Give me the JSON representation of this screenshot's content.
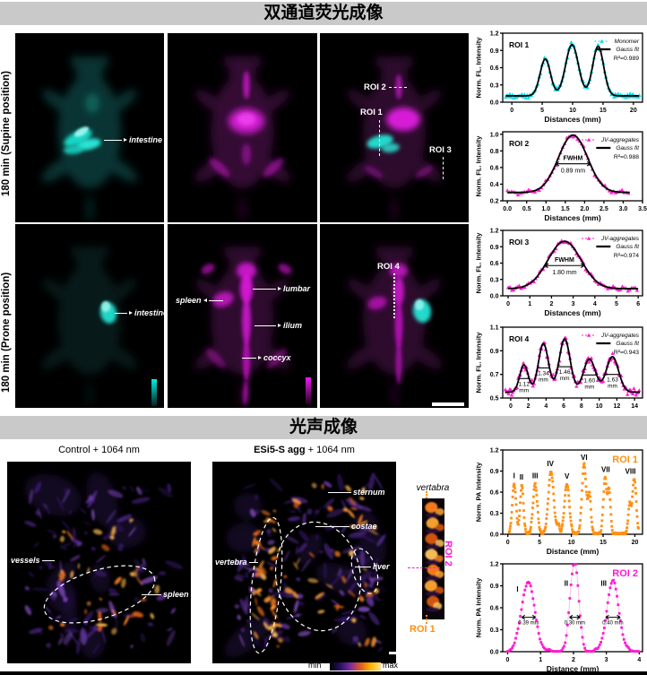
{
  "sections": {
    "fluorescence": {
      "title": "双通道荧光成像"
    },
    "photoacoustic": {
      "title": "光声成像"
    }
  },
  "row_labels": {
    "supine": "180 min (Supine position)",
    "prone": "180 min (Prone position)"
  },
  "anatomy_labels": {
    "intestine": "intestine",
    "spleen": "spleen",
    "lumbar": "lumbar",
    "ilium": "ilium",
    "coccyx": "coccyx",
    "vessels": "vessels",
    "spleen_pa": "spleen",
    "sternum": "sternum",
    "costae": "costae",
    "vertebra": "vertebra",
    "liver": "liver",
    "vertabra_strip": "vertabra"
  },
  "roi_labels": {
    "roi1": "ROI 1",
    "roi2": "ROI 2",
    "roi3": "ROI 3",
    "roi4": "ROI 4",
    "pa_roi1": "ROI 1",
    "pa_roi2": "ROI 2"
  },
  "pa_titles": {
    "control": "Control + 1064 nm",
    "esi5_bold": "ESi5-S agg",
    "esi5_rest": " + 1064 nm"
  },
  "colorbar": {
    "min": "min",
    "max": "max"
  },
  "colors": {
    "cyan": "#00dde8",
    "magenta": "#ff22cc",
    "orange": "#ff9012",
    "roi2_magenta": "#ff1ad4",
    "header_bg": "#c9c9c9"
  },
  "chart_data": [
    {
      "name": "FL line profile ROI 1",
      "type": "scatter+fit",
      "roi": "ROI 1",
      "roi_pos": "tl",
      "roi_color": "#000000",
      "xlabel": "Distances (mm)",
      "ylabel": "Norm. FL. Intensity",
      "xlim": [
        -1.5,
        21.5
      ],
      "ylim": [
        0,
        1.2
      ],
      "xticks": [
        0,
        5,
        10,
        15,
        20
      ],
      "xtick_labels": [
        "0",
        "5",
        "10",
        "15",
        "20"
      ],
      "yticks": [
        0,
        0.3,
        0.6,
        0.9,
        1.2
      ],
      "ytick_labels": [
        "0.0",
        "0.3",
        "0.6",
        "0.9",
        "1.2"
      ],
      "legend": [
        {
          "label": "Monomer",
          "color": "#00dde8",
          "style": "marker"
        },
        {
          "label": "Gauss fit",
          "color": "#000000",
          "style": "line"
        }
      ],
      "r2": "R²=0.989",
      "marker": "triangle",
      "marker_color": "#00dde8",
      "baseline": 0.11,
      "peaks": [
        {
          "c": 5.5,
          "h": 0.64,
          "s": 0.85
        },
        {
          "c": 9.9,
          "h": 0.89,
          "s": 1.05
        },
        {
          "c": 14.2,
          "h": 0.86,
          "s": 0.9
        }
      ],
      "data_range": [
        -1,
        21
      ],
      "dx": 0.22,
      "noise": 0.025,
      "annotations": []
    },
    {
      "name": "FL line profile ROI 2",
      "type": "scatter+fit",
      "roi": "ROI 2",
      "roi_pos": "tl",
      "roi_color": "#000000",
      "xlabel": "Distances (mm)",
      "ylabel": "Norm. FL. Intensity",
      "xlim": [
        -0.12,
        3.5
      ],
      "ylim": [
        0.2,
        1.03
      ],
      "xticks": [
        0,
        0.5,
        1,
        1.5,
        2,
        2.5,
        3,
        3.5
      ],
      "xtick_labels": [
        "0.0",
        "0.5",
        "1.0",
        "1.5",
        "2.0",
        "2.5",
        "3.0",
        "3.5"
      ],
      "yticks": [
        0.2,
        0.4,
        0.6,
        0.8,
        1
      ],
      "ytick_labels": [
        "0.2",
        "0.4",
        "0.6",
        "0.8",
        "1.0"
      ],
      "legend": [
        {
          "label": "JV-aggregates",
          "color": "#ff22cc",
          "style": "marker"
        },
        {
          "label": "Gauss fit",
          "color": "#000000",
          "style": "line"
        }
      ],
      "r2": "R²=0.988",
      "marker": "triangle",
      "marker_color": "#ff22cc",
      "baseline": 0.3,
      "peaks": [
        {
          "c": 1.7,
          "h": 0.69,
          "s": 0.378
        }
      ],
      "data_range": [
        0,
        3.18
      ],
      "dx": 0.055,
      "noise": 0.016,
      "annotations": [
        {
          "type": "fwhm",
          "x1": 1.255,
          "x2": 2.145,
          "y": 0.645,
          "title": "FWHM",
          "value": "0.89 mm"
        }
      ]
    },
    {
      "name": "FL line profile ROI 3",
      "type": "scatter+fit",
      "roi": "ROI 3",
      "roi_pos": "tl",
      "roi_color": "#000000",
      "xlabel": "Distances (mm)",
      "ylabel": "Norm. FL. Intensity",
      "xlim": [
        -0.25,
        6.2
      ],
      "ylim": [
        0,
        1.2
      ],
      "xticks": [
        0,
        1,
        2,
        3,
        4,
        5,
        6
      ],
      "xtick_labels": [
        "0",
        "1",
        "2",
        "3",
        "4",
        "5",
        "6"
      ],
      "yticks": [
        0,
        0.3,
        0.6,
        0.9,
        1.2
      ],
      "ytick_labels": [
        "0.0",
        "0.3",
        "0.6",
        "0.9",
        "1.2"
      ],
      "legend": [
        {
          "label": "JV-aggregates",
          "color": "#ff22cc",
          "style": "marker"
        },
        {
          "label": "Gauss fit",
          "color": "#000000",
          "style": "line"
        }
      ],
      "r2": "R²=0.974",
      "marker": "triangle",
      "marker_color": "#ff22cc",
      "baseline": 0.13,
      "peaks": [
        {
          "c": 2.6,
          "h": 0.87,
          "s": 0.765
        }
      ],
      "data_range": [
        0,
        6
      ],
      "dx": 0.085,
      "noise": 0.026,
      "annotations": [
        {
          "type": "fwhm",
          "x1": 1.7,
          "x2": 3.5,
          "y": 0.555,
          "title": "FWHM",
          "value": "1.80 mm"
        }
      ]
    },
    {
      "name": "FL line profile ROI 4",
      "type": "scatter+fit",
      "roi": "ROI 4",
      "roi_pos": "tl",
      "roi_color": "#000000",
      "xlabel": null,
      "ylabel": "Norm. FL. Intensity",
      "xlim": [
        -0.9,
        14.9
      ],
      "ylim": [
        0.5,
        1.1
      ],
      "xticks": [
        0,
        2,
        4,
        6,
        8,
        10,
        12,
        14
      ],
      "xtick_labels": [
        "0",
        "2",
        "4",
        "6",
        "8",
        "10",
        "12",
        "14"
      ],
      "yticks": [
        0.5,
        0.7,
        0.9,
        1.1
      ],
      "ytick_labels": [
        "0.5",
        "0.7",
        "0.9",
        "1.1"
      ],
      "legend": [
        {
          "label": "JV-aggregates",
          "color": "#ff22cc",
          "style": "marker"
        },
        {
          "label": "Gauss fit",
          "color": "#000000",
          "style": "line"
        }
      ],
      "r2": "R²=0.943",
      "marker": "triangle",
      "marker_color": "#ff22cc",
      "baseline": 0.55,
      "peaks": [
        {
          "c": 1.5,
          "h": 0.23,
          "s": 0.48
        },
        {
          "c": 3.7,
          "h": 0.41,
          "s": 0.57
        },
        {
          "c": 6.1,
          "h": 0.45,
          "s": 0.62
        },
        {
          "c": 8.9,
          "h": 0.28,
          "s": 0.68
        },
        {
          "c": 11.5,
          "h": 0.3,
          "s": 0.69
        }
      ],
      "data_range": [
        -0.6,
        14.6
      ],
      "dx": 0.12,
      "noise": 0.02,
      "annotations": [
        {
          "type": "width",
          "x1": 0.94,
          "x2": 2.06,
          "y": 0.665,
          "label": "1.12 mm"
        },
        {
          "type": "width",
          "x1": 3.03,
          "x2": 4.37,
          "y": 0.755,
          "label": "1.34 mm"
        },
        {
          "type": "width",
          "x1": 5.37,
          "x2": 6.83,
          "y": 0.765,
          "label": "1.46 mm"
        },
        {
          "type": "width",
          "x1": 8.1,
          "x2": 9.7,
          "y": 0.695,
          "label": "1.60 mm"
        },
        {
          "type": "width",
          "x1": 10.69,
          "x2": 12.32,
          "y": 0.7,
          "label": "1.63 mm"
        }
      ]
    },
    {
      "name": "PA line profile ROI 1",
      "type": "scatter",
      "roi": "ROI 1",
      "roi_pos": "tr",
      "roi_color": "#ff9012",
      "xlabel": "Distance (mm)",
      "ylabel": "Norm. PA Intensity",
      "xlim": [
        -0.8,
        21.2
      ],
      "ylim": [
        0,
        1.2
      ],
      "xticks": [
        0,
        5,
        10,
        15,
        20
      ],
      "xtick_labels": [
        "0",
        "5",
        "10",
        "15",
        "20"
      ],
      "yticks": [
        0,
        0.3,
        0.6,
        0.9,
        1.2
      ],
      "ytick_labels": [
        "0.0",
        "0.3",
        "0.6",
        "0.9",
        "1.2"
      ],
      "legend": [],
      "r2": null,
      "marker": "square",
      "marker_color": "#ff9012",
      "baseline": 0.006,
      "clamp0": true,
      "peaks": [
        {
          "c": 1.0,
          "h": 0.71,
          "s": 0.3
        },
        {
          "c": 2.2,
          "h": 0.69,
          "s": 0.26
        },
        {
          "c": 4.3,
          "h": 0.71,
          "s": 0.34
        },
        {
          "c": 6.8,
          "h": 0.89,
          "s": 0.42
        },
        {
          "c": 7.95,
          "h": 0.13,
          "s": 0.18
        },
        {
          "c": 9.3,
          "h": 0.71,
          "s": 0.38
        },
        {
          "c": 12.0,
          "h": 0.99,
          "s": 0.33
        },
        {
          "c": 12.85,
          "h": 0.55,
          "s": 0.24
        },
        {
          "c": 15.3,
          "h": 0.79,
          "s": 0.27
        },
        {
          "c": 15.95,
          "h": 0.6,
          "s": 0.22
        },
        {
          "c": 19.15,
          "h": 0.4,
          "s": 0.22
        },
        {
          "c": 19.9,
          "h": 0.79,
          "s": 0.3
        }
      ],
      "data_range": [
        0.2,
        20.6
      ],
      "dx": 0.07,
      "noise": 0.012,
      "annotations": [
        {
          "type": "peaklabel",
          "x": 1.0,
          "y": 0.8,
          "text": "I"
        },
        {
          "type": "peaklabel",
          "x": 2.15,
          "y": 0.78,
          "text": "II"
        },
        {
          "type": "peaklabel",
          "x": 4.3,
          "y": 0.8,
          "text": "III"
        },
        {
          "type": "peaklabel",
          "x": 6.7,
          "y": 0.97,
          "text": "IV"
        },
        {
          "type": "peaklabel",
          "x": 9.3,
          "y": 0.79,
          "text": "V"
        },
        {
          "type": "peaklabel",
          "x": 12.0,
          "y": 1.06,
          "text": "VI"
        },
        {
          "type": "peaklabel",
          "x": 15.4,
          "y": 0.89,
          "text": "VII"
        },
        {
          "type": "peaklabel",
          "x": 19.3,
          "y": 0.86,
          "text": "VIII"
        }
      ]
    },
    {
      "name": "PA line profile ROI 2",
      "type": "scatter",
      "roi": "ROI 2",
      "roi_pos": "tr",
      "roi_color": "#ff1ad4",
      "xlabel": "Distance (mm)",
      "ylabel": "Norm. PA Intensity",
      "xlim": [
        -0.15,
        4.1
      ],
      "ylim": [
        0,
        1.2
      ],
      "xticks": [
        0,
        1,
        2,
        3,
        4
      ],
      "xtick_labels": [
        "0",
        "1",
        "2",
        "3",
        "4"
      ],
      "yticks": [
        0,
        0.3,
        0.6,
        0.9,
        1.2
      ],
      "ytick_labels": [
        "0.0",
        "0.3",
        "0.6",
        "0.9",
        "1.2"
      ],
      "legend": [],
      "r2": null,
      "marker": "square",
      "marker_color": "#ff1ad4",
      "line_color": "#f5b5e5",
      "baseline": 0.006,
      "clamp0": true,
      "peaks": [
        {
          "c": 0.62,
          "h": 0.95,
          "s": 0.2
        },
        {
          "c": 1.93,
          "h": 0.5,
          "s": 0.1
        },
        {
          "c": 2.07,
          "h": 0.99,
          "s": 0.11
        },
        {
          "c": 3.2,
          "h": 0.96,
          "s": 0.18
        }
      ],
      "data_range": [
        0,
        4
      ],
      "dx": 0.035,
      "noise": 0.012,
      "annotations": [
        {
          "type": "peaklabel",
          "x": 0.3,
          "y": 0.82,
          "text": "I"
        },
        {
          "type": "peaklabel",
          "x": 1.78,
          "y": 0.9,
          "text": "II"
        },
        {
          "type": "peaklabel",
          "x": 2.92,
          "y": 0.9,
          "text": "III"
        },
        {
          "type": "arrow_width",
          "x1": 0.43,
          "x2": 0.85,
          "y": 0.47,
          "label": "0.39 mm"
        },
        {
          "type": "arrow_width",
          "x1": 1.88,
          "x2": 2.2,
          "y": 0.47,
          "label": "0.30 mm"
        },
        {
          "type": "arrow_width",
          "x1": 2.98,
          "x2": 3.42,
          "y": 0.47,
          "label": "0.40 mm"
        }
      ]
    }
  ]
}
